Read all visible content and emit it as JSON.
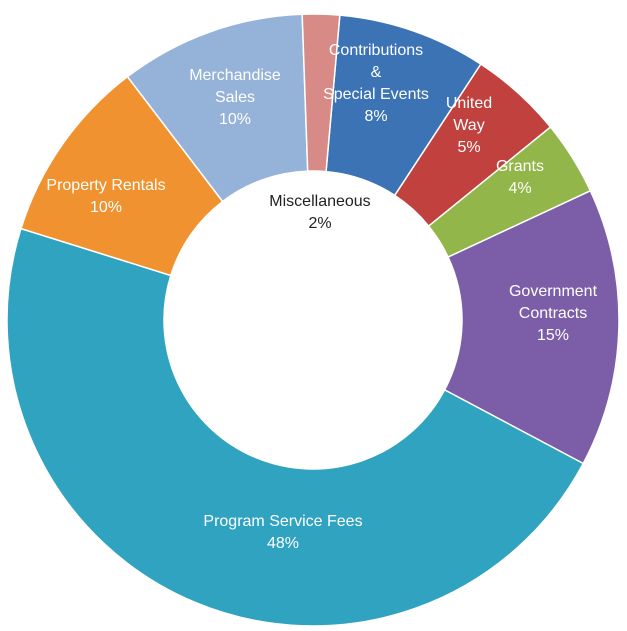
{
  "chart_data": {
    "type": "pie",
    "donut": true,
    "title": "",
    "slices": [
      {
        "label": "Contributions & Special Events",
        "lines": [
          "Contributions",
          "&",
          "Special Events"
        ],
        "value": 8,
        "display": "8%",
        "color": "#3B73B5"
      },
      {
        "label": "United Way",
        "lines": [
          "United",
          "Way"
        ],
        "value": 5,
        "display": "5%",
        "color": "#C0413E"
      },
      {
        "label": "Grants",
        "lines": [
          "Grants"
        ],
        "value": 4,
        "display": "4%",
        "color": "#92B64A"
      },
      {
        "label": "Government Contracts",
        "lines": [
          "Government",
          "Contracts"
        ],
        "value": 15,
        "display": "15%",
        "color": "#7B5EA7"
      },
      {
        "label": "Program Service Fees",
        "lines": [
          "Program Service Fees"
        ],
        "value": 48,
        "display": "48%",
        "color": "#2FA3BF"
      },
      {
        "label": "Property Rentals",
        "lines": [
          "Property Rentals"
        ],
        "value": 10,
        "display": "10%",
        "color": "#F0922F"
      },
      {
        "label": "Merchandise Sales",
        "lines": [
          "Merchandise",
          "Sales"
        ],
        "value": 10,
        "display": "10%",
        "color": "#95B2D8"
      },
      {
        "label": "Miscellaneous",
        "lines": [
          "Miscellaneous"
        ],
        "value": 2,
        "display": "2%",
        "color": "#D78A86"
      }
    ]
  }
}
